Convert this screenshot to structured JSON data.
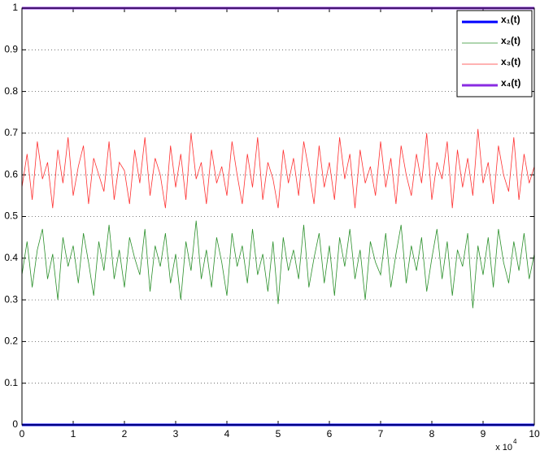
{
  "chart_data": {
    "type": "line",
    "x": [
      0,
      0.1,
      0.2,
      0.3,
      0.4,
      0.5,
      0.6,
      0.7,
      0.8,
      0.9,
      1,
      1.1,
      1.2,
      1.3,
      1.4,
      1.5,
      1.6,
      1.7,
      1.8,
      1.9,
      2,
      2.1,
      2.2,
      2.3,
      2.4,
      2.5,
      2.6,
      2.7,
      2.8,
      2.9,
      3,
      3.1,
      3.2,
      3.3,
      3.4,
      3.5,
      3.6,
      3.7,
      3.8,
      3.9,
      4,
      4.1,
      4.2,
      4.3,
      4.4,
      4.5,
      4.6,
      4.7,
      4.8,
      4.9,
      5,
      5.1,
      5.2,
      5.3,
      5.4,
      5.5,
      5.6,
      5.7,
      5.8,
      5.9,
      6,
      6.1,
      6.2,
      6.3,
      6.4,
      6.5,
      6.6,
      6.7,
      6.8,
      6.9,
      7,
      7.1,
      7.2,
      7.3,
      7.4,
      7.5,
      7.6,
      7.7,
      7.8,
      7.9,
      8,
      8.1,
      8.2,
      8.3,
      8.4,
      8.5,
      8.6,
      8.7,
      8.8,
      8.9,
      9,
      9.1,
      9.2,
      9.3,
      9.4,
      9.5,
      9.6,
      9.7,
      9.8,
      9.9,
      10
    ],
    "series": [
      {
        "name": "x₁(t)",
        "color": "#0000ff",
        "line_width": 3,
        "x": [
          0,
          10
        ],
        "values": [
          0,
          0
        ]
      },
      {
        "name": "x₂(t)",
        "color": "#2a8f2a",
        "line_width": 0.8,
        "values": [
          0.36,
          0.44,
          0.33,
          0.42,
          0.47,
          0.35,
          0.41,
          0.3,
          0.45,
          0.38,
          0.43,
          0.34,
          0.46,
          0.39,
          0.31,
          0.44,
          0.37,
          0.48,
          0.35,
          0.42,
          0.33,
          0.45,
          0.4,
          0.36,
          0.47,
          0.32,
          0.43,
          0.38,
          0.46,
          0.34,
          0.41,
          0.3,
          0.44,
          0.37,
          0.49,
          0.35,
          0.42,
          0.33,
          0.45,
          0.39,
          0.31,
          0.46,
          0.38,
          0.43,
          0.34,
          0.47,
          0.36,
          0.41,
          0.32,
          0.44,
          0.29,
          0.45,
          0.37,
          0.42,
          0.35,
          0.48,
          0.33,
          0.4,
          0.46,
          0.34,
          0.43,
          0.31,
          0.45,
          0.38,
          0.47,
          0.35,
          0.42,
          0.3,
          0.44,
          0.39,
          0.36,
          0.46,
          0.33,
          0.41,
          0.48,
          0.34,
          0.43,
          0.37,
          0.45,
          0.32,
          0.4,
          0.47,
          0.35,
          0.44,
          0.31,
          0.42,
          0.38,
          0.46,
          0.28,
          0.43,
          0.36,
          0.45,
          0.33,
          0.47,
          0.39,
          0.34,
          0.44,
          0.37,
          0.46,
          0.35,
          0.41
        ]
      },
      {
        "name": "x₃(t)",
        "color": "#ff3030",
        "line_width": 0.8,
        "values": [
          0.57,
          0.65,
          0.54,
          0.68,
          0.59,
          0.63,
          0.52,
          0.66,
          0.58,
          0.69,
          0.55,
          0.62,
          0.67,
          0.53,
          0.64,
          0.6,
          0.56,
          0.68,
          0.54,
          0.63,
          0.61,
          0.53,
          0.66,
          0.58,
          0.69,
          0.55,
          0.64,
          0.6,
          0.52,
          0.67,
          0.57,
          0.65,
          0.54,
          0.7,
          0.59,
          0.63,
          0.53,
          0.66,
          0.58,
          0.62,
          0.55,
          0.68,
          0.6,
          0.53,
          0.65,
          0.57,
          0.69,
          0.54,
          0.63,
          0.59,
          0.52,
          0.66,
          0.58,
          0.64,
          0.55,
          0.68,
          0.61,
          0.53,
          0.67,
          0.57,
          0.63,
          0.54,
          0.69,
          0.59,
          0.65,
          0.52,
          0.66,
          0.58,
          0.62,
          0.55,
          0.68,
          0.57,
          0.64,
          0.53,
          0.67,
          0.6,
          0.55,
          0.65,
          0.58,
          0.7,
          0.54,
          0.63,
          0.59,
          0.68,
          0.52,
          0.66,
          0.57,
          0.64,
          0.55,
          0.71,
          0.58,
          0.63,
          0.53,
          0.67,
          0.6,
          0.56,
          0.69,
          0.54,
          0.65,
          0.58,
          0.62
        ]
      },
      {
        "name": "x₄(t)",
        "color": "#8a2be2",
        "line_width": 3,
        "x": [
          0,
          10
        ],
        "values": [
          1,
          1
        ]
      }
    ],
    "xlim": [
      0,
      10
    ],
    "xticks": [
      0,
      1,
      2,
      3,
      4,
      5,
      6,
      7,
      8,
      9,
      10
    ],
    "ylim": [
      0,
      1
    ],
    "yticks": [
      0,
      0.1,
      0.2,
      0.3,
      0.4,
      0.5,
      0.6,
      0.7,
      0.8,
      0.9,
      1
    ],
    "x_scale_base": "x 10",
    "x_scale_exponent": "4",
    "grid": "y",
    "legend": "upper right"
  }
}
